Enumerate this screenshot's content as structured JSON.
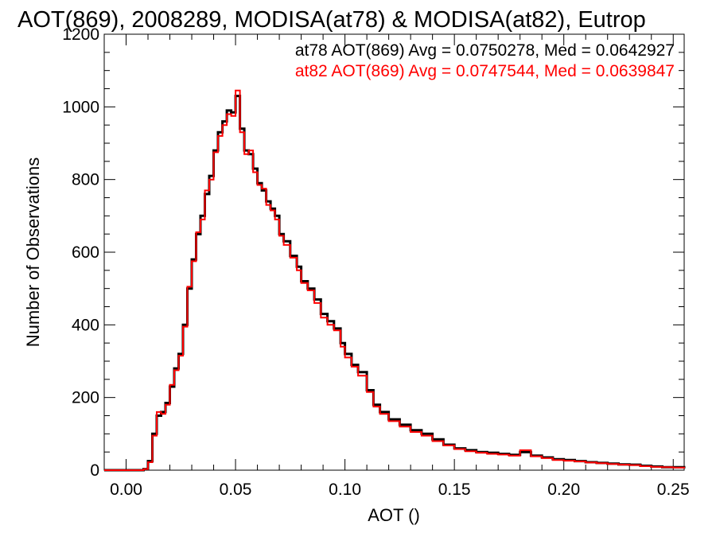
{
  "chart_data": {
    "type": "line",
    "title": "AOT(869), 2008289, MODISA(at78) & MODISA(at82), Eutrop",
    "xlabel": "AOT ()",
    "ylabel": "Number of Observations",
    "xlim": [
      -0.01,
      0.255
    ],
    "ylim": [
      0,
      1200
    ],
    "xticks": [
      0.0,
      0.05,
      0.1,
      0.15,
      0.2,
      0.25
    ],
    "xtick_labels": [
      "0.00",
      "0.05",
      "0.10",
      "0.15",
      "0.20",
      "0.25"
    ],
    "yticks": [
      0,
      200,
      400,
      600,
      800,
      1000,
      1200
    ],
    "ytick_labels": [
      "0",
      "200",
      "400",
      "600",
      "800",
      "1000",
      "1200"
    ],
    "grid": false,
    "legend_placement": "top-right",
    "x": [
      -0.01,
      0.0,
      0.005,
      0.008,
      0.01,
      0.012,
      0.014,
      0.016,
      0.018,
      0.02,
      0.022,
      0.024,
      0.026,
      0.028,
      0.03,
      0.032,
      0.034,
      0.036,
      0.038,
      0.04,
      0.042,
      0.044,
      0.046,
      0.048,
      0.05,
      0.052,
      0.054,
      0.056,
      0.058,
      0.06,
      0.062,
      0.064,
      0.066,
      0.068,
      0.07,
      0.072,
      0.075,
      0.078,
      0.08,
      0.083,
      0.086,
      0.089,
      0.092,
      0.095,
      0.098,
      0.1,
      0.103,
      0.106,
      0.11,
      0.113,
      0.116,
      0.12,
      0.125,
      0.13,
      0.135,
      0.14,
      0.145,
      0.15,
      0.155,
      0.16,
      0.165,
      0.17,
      0.175,
      0.18,
      0.185,
      0.19,
      0.195,
      0.2,
      0.205,
      0.21,
      0.215,
      0.22,
      0.225,
      0.23,
      0.235,
      0.24,
      0.245,
      0.25,
      0.255
    ],
    "series": [
      {
        "name": "at78 AOT(869) Avg = 0.0750278, Med = 0.0642927",
        "color": "#000000",
        "values": [
          0,
          0,
          0,
          3,
          25,
          100,
          150,
          160,
          185,
          230,
          280,
          320,
          400,
          500,
          580,
          650,
          700,
          760,
          810,
          880,
          930,
          960,
          990,
          985,
          1030,
          940,
          880,
          870,
          830,
          790,
          770,
          740,
          720,
          700,
          650,
          630,
          590,
          560,
          520,
          500,
          470,
          430,
          410,
          390,
          350,
          320,
          290,
          270,
          220,
          180,
          160,
          140,
          125,
          110,
          100,
          85,
          70,
          60,
          55,
          50,
          48,
          45,
          42,
          50,
          40,
          35,
          30,
          28,
          25,
          22,
          20,
          18,
          16,
          15,
          12,
          10,
          8,
          8,
          5
        ]
      },
      {
        "name": "at82 AOT(869) Avg = 0.0747544, Med = 0.0639847",
        "color": "#ff0000",
        "values": [
          0,
          0,
          0,
          3,
          22,
          95,
          160,
          155,
          180,
          235,
          275,
          315,
          395,
          505,
          575,
          655,
          690,
          770,
          800,
          875,
          920,
          950,
          980,
          975,
          1045,
          930,
          870,
          880,
          820,
          785,
          775,
          730,
          715,
          690,
          645,
          620,
          585,
          550,
          515,
          495,
          460,
          420,
          400,
          385,
          340,
          310,
          285,
          260,
          215,
          175,
          155,
          135,
          120,
          105,
          95,
          80,
          68,
          58,
          52,
          48,
          45,
          43,
          40,
          55,
          38,
          33,
          28,
          26,
          24,
          21,
          19,
          17,
          15,
          14,
          11,
          9,
          8,
          7,
          5
        ]
      }
    ]
  }
}
